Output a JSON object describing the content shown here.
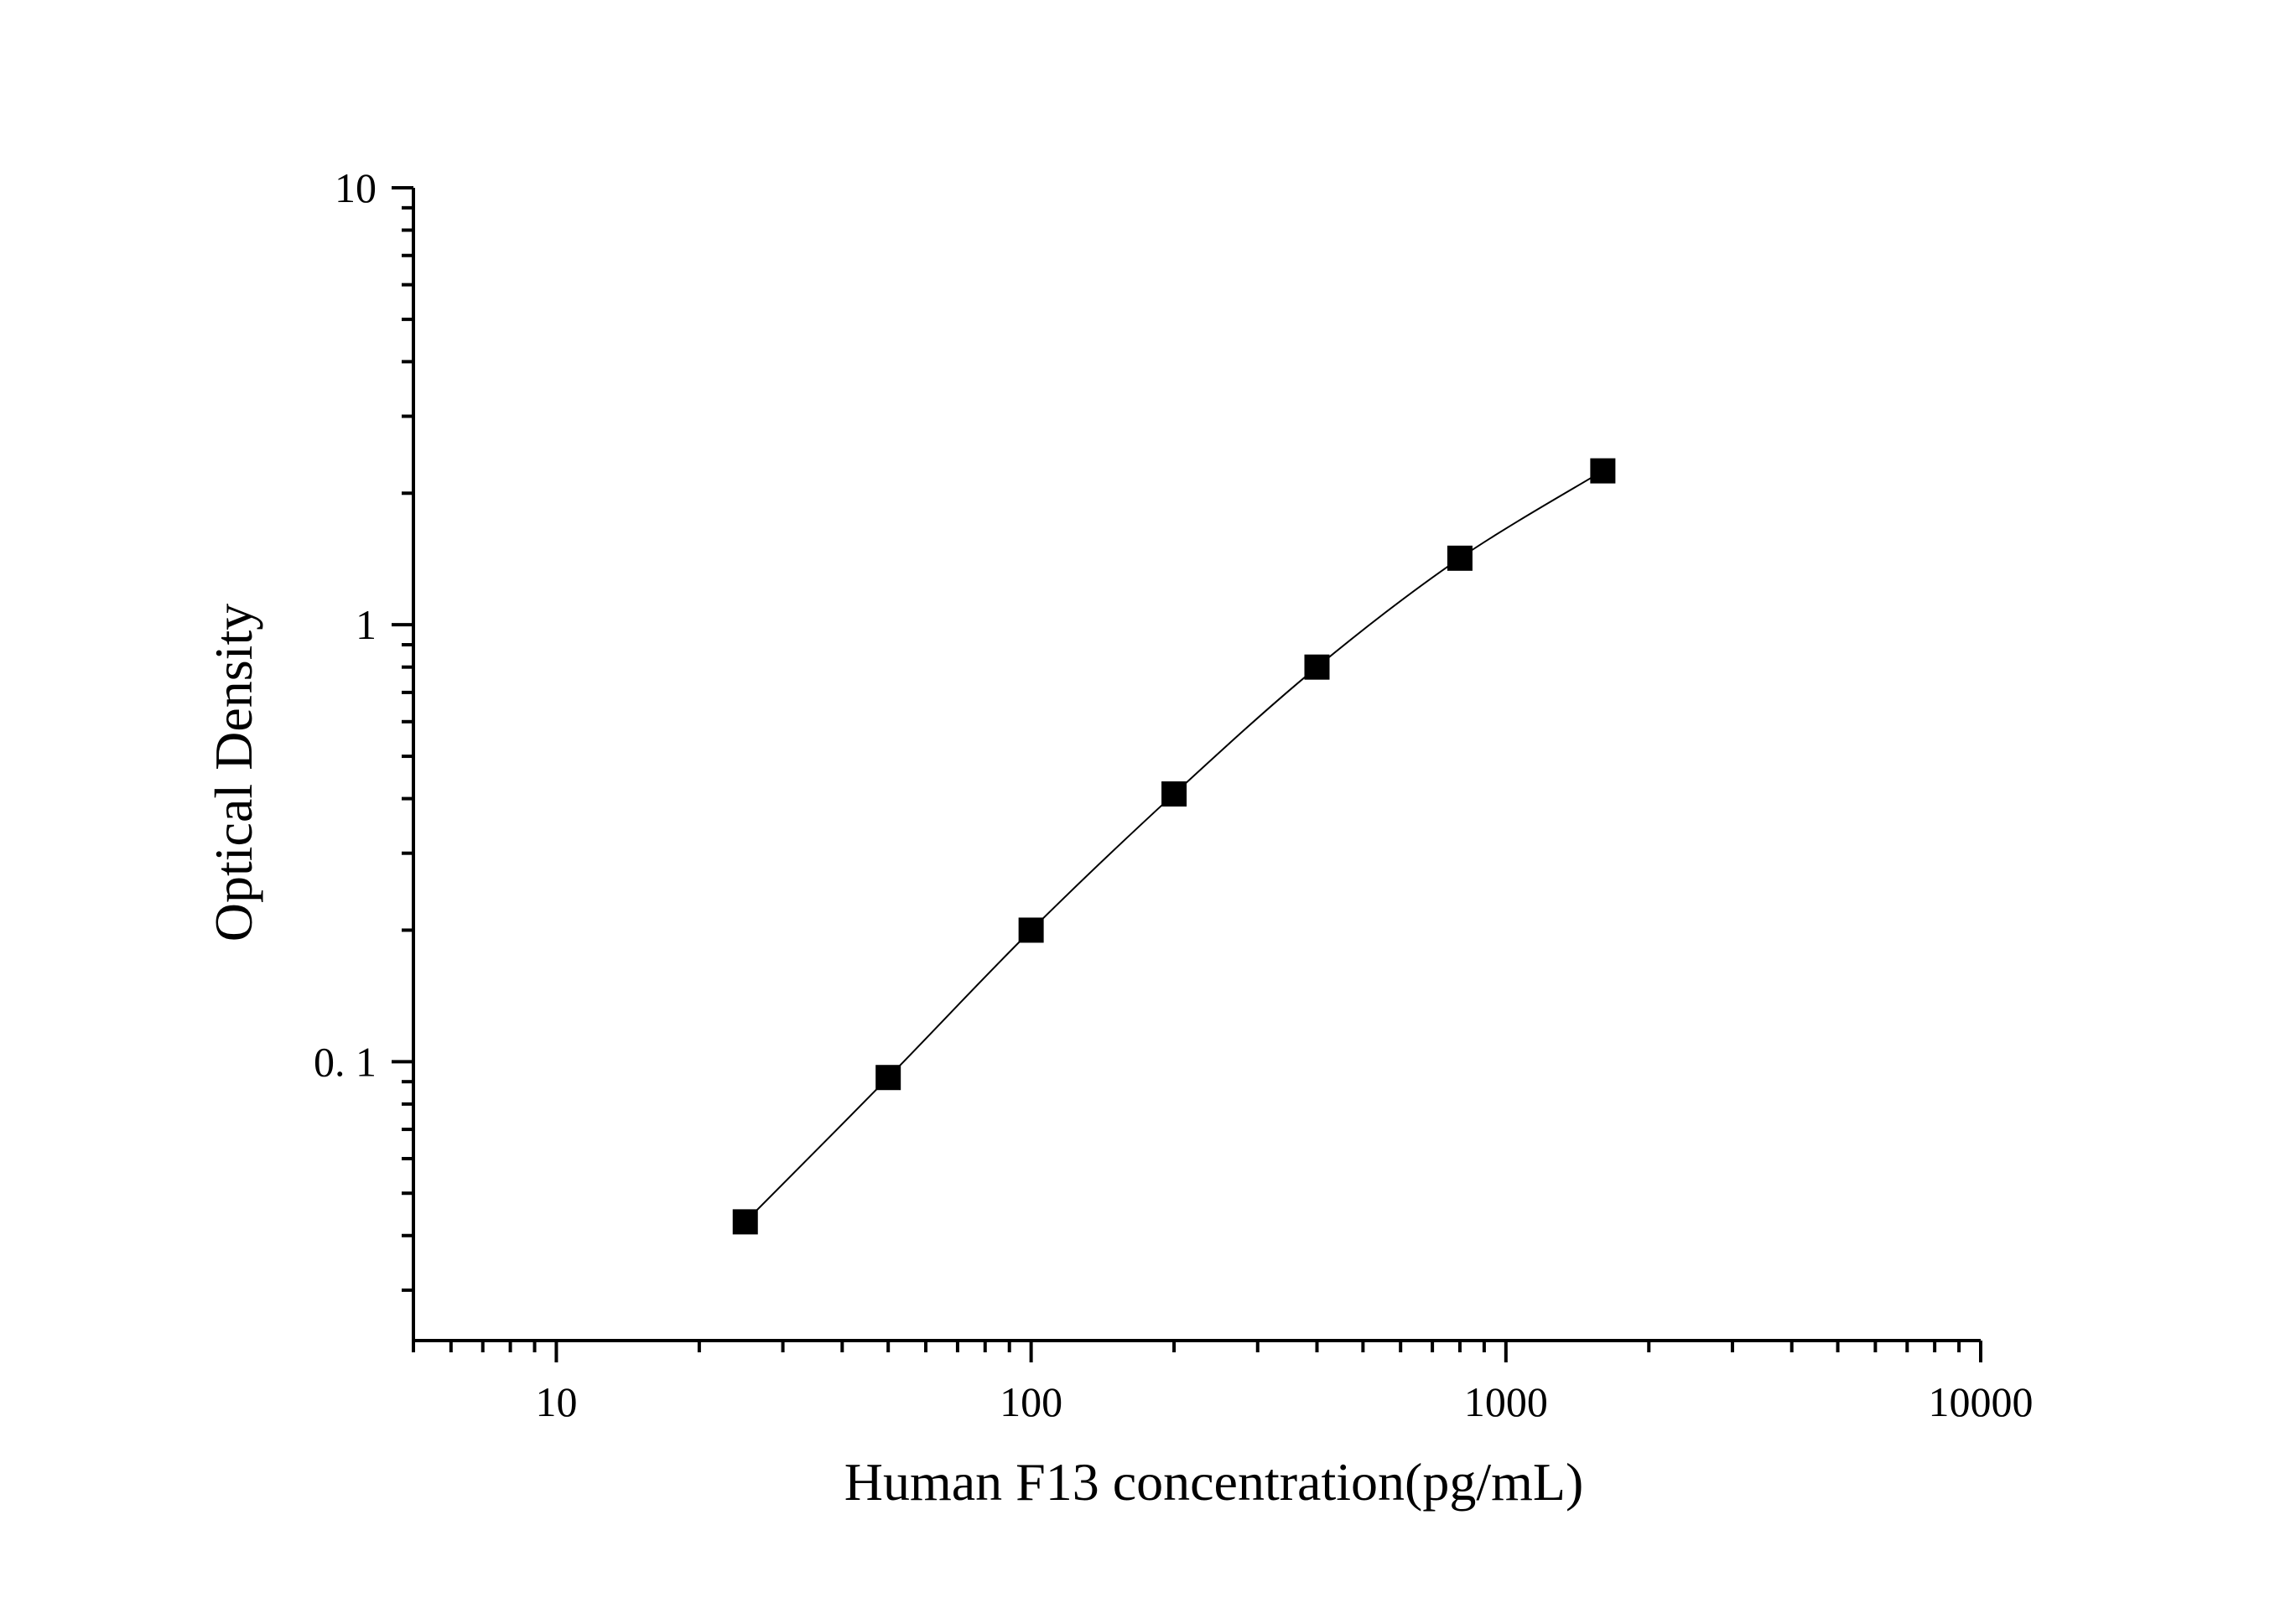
{
  "chart_data": {
    "type": "scatter",
    "xlabel": "Human F13  concentration(pg/mL)",
    "ylabel": "Optical Density",
    "x_scale": "log",
    "y_scale": "log",
    "xlim": [
      5,
      10000
    ],
    "ylim": [
      0.023,
      10
    ],
    "x_ticks": [
      {
        "value": 10,
        "label": "10"
      },
      {
        "value": 100,
        "label": "100"
      },
      {
        "value": 1000,
        "label": "1000"
      },
      {
        "value": 10000,
        "label": "10000"
      }
    ],
    "y_ticks": [
      {
        "value": 0.1,
        "label": "0. 1"
      },
      {
        "value": 1,
        "label": "1"
      },
      {
        "value": 10,
        "label": "10"
      }
    ],
    "grid": false,
    "marker": "square",
    "fit_curve": true,
    "series": [
      {
        "x": [
          25,
          50,
          100,
          200,
          400,
          800,
          1600
        ],
        "y": [
          0.043,
          0.092,
          0.2,
          0.41,
          0.8,
          1.42,
          2.25
        ]
      }
    ]
  }
}
